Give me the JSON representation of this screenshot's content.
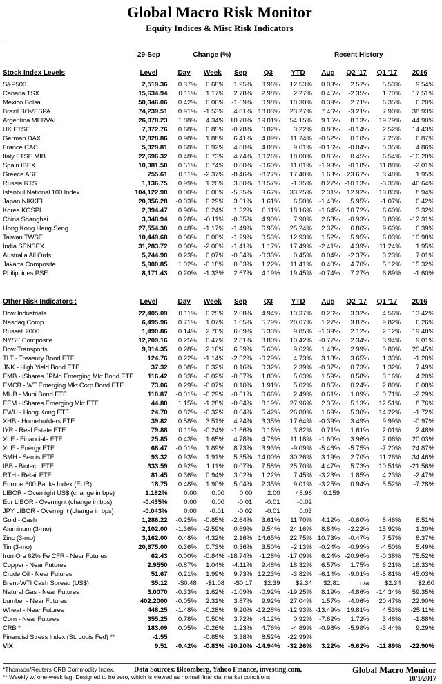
{
  "header": {
    "title": "Global Macro Risk Monitor",
    "subtitle": "Equity Indices & Misc Risk Indicators"
  },
  "columns": {
    "date_label": "29-Sep",
    "change_label": "Change (%)",
    "recent_label": "Recent History",
    "headers": [
      "Level",
      "Day",
      "Week",
      "Sep",
      "Q3",
      "YTD",
      "Aug",
      "Q2 '17",
      "Q1 '17",
      "2016"
    ]
  },
  "stock_table": {
    "section_label": "Stock Index Levels",
    "rows": [
      {
        "name": "S&P500",
        "values": [
          "2,519.36",
          "0.37%",
          "0.68%",
          "1.95%",
          "3.96%",
          "12.53%",
          "0.03%",
          "2.57%",
          "5.53%",
          "9.54%"
        ]
      },
      {
        "name": "Canada TSX",
        "values": [
          "15,634.94",
          "0.11%",
          "1.17%",
          "2.78%",
          "2.98%",
          "2.27%",
          "0.45%",
          "-2.35%",
          "1.70%",
          "17.51%"
        ]
      },
      {
        "name": "Mexico Bolsa",
        "values": [
          "50,346.06",
          "0.42%",
          "0.06%",
          "-1.69%",
          "0.98%",
          "10.30%",
          "0.39%",
          "2.71%",
          "6.35%",
          "6.20%"
        ]
      },
      {
        "name": "Brazil BOVESPA",
        "values": [
          "74,239.51",
          "0.91%",
          "-1.53%",
          "4.81%",
          "18.03%",
          "23.27%",
          "7.46%",
          "-3.21%",
          "7.90%",
          "38.93%"
        ]
      },
      {
        "name": "Argentina MERVAL",
        "values": [
          "26,078.23",
          "1.88%",
          "4.34%",
          "10.70%",
          "19.01%",
          "54.15%",
          "9.15%",
          "8.13%",
          "19.79%",
          "44.90%"
        ]
      },
      {
        "name": "UK FTSE",
        "values": [
          "7,372.76",
          "0.68%",
          "0.85%",
          "-0.78%",
          "0.82%",
          "3.22%",
          "0.80%",
          "-0.14%",
          "2.52%",
          "14.43%"
        ]
      },
      {
        "name": "German DAX",
        "values": [
          "12,828.86",
          "0.98%",
          "1.88%",
          "6.41%",
          "4.09%",
          "11.74%",
          "-0.52%",
          "0.10%",
          "7.25%",
          "6.87%"
        ]
      },
      {
        "name": "France CAC",
        "values": [
          "5,329.81",
          "0.68%",
          "0.92%",
          "4.80%",
          "4.08%",
          "9.61%",
          "-0.16%",
          "-0.04%",
          "5.35%",
          "4.86%"
        ]
      },
      {
        "name": "Italy FTSE MIB",
        "values": [
          "22,696.32",
          "0.48%",
          "0.73%",
          "4.74%",
          "10.26%",
          "18.00%",
          "0.85%",
          "0.45%",
          "6.54%",
          "-10.20%"
        ]
      },
      {
        "name": "Spain IBEX",
        "values": [
          "10,381.50",
          "0.51%",
          "0.74%",
          "0.80%",
          "-0.60%",
          "11.01%",
          "-1.93%",
          "-0.18%",
          "11.88%",
          "-2.01%"
        ]
      },
      {
        "name": "Greece ASE",
        "values": [
          "755.61",
          "0.11%",
          "-2.37%",
          "-8.46%",
          "-8.27%",
          "17.40%",
          "1.63%",
          "23.67%",
          "3.48%",
          "1.95%"
        ]
      },
      {
        "name": "Russia RTS",
        "values": [
          "1,136.75",
          "0.99%",
          "1.20%",
          "3.80%",
          "13.57%",
          "-1.35%",
          "8.27%",
          "-10.13%",
          "-3.35%",
          "46.64%"
        ]
      },
      {
        "name": "Istanbul National 100 Index",
        "values": [
          "104,122.90",
          "0.00%",
          "0.00%",
          "-5.35%",
          "3.67%",
          "33.25%",
          "2.31%",
          "12.92%",
          "13.83%",
          "8.94%"
        ]
      },
      {
        "name": "Japan NIKKEI",
        "values": [
          "20,356.28",
          "-0.03%",
          "0.29%",
          "3.61%",
          "1.61%",
          "6.50%",
          "-1.40%",
          "5.95%",
          "-1.07%",
          "0.42%"
        ]
      },
      {
        "name": "Korea KOSPI",
        "values": [
          "2,394.47",
          "0.90%",
          "0.24%",
          "1.32%",
          "0.11%",
          "18.16%",
          "-1.64%",
          "10.72%",
          "6.60%",
          "3.32%"
        ]
      },
      {
        "name": "China Shanghai",
        "values": [
          "3,348.94",
          "0.28%",
          "-0.11%",
          "-0.35%",
          "4.90%",
          "7.90%",
          "2.68%",
          "-0.93%",
          "3.83%",
          "-12.31%"
        ]
      },
      {
        "name": "Hong Kong Hang Seng",
        "values": [
          "27,554.30",
          "0.48%",
          "-1.17%",
          "-1.49%",
          "6.95%",
          "25.24%",
          "2.37%",
          "6.86%",
          "9.60%",
          "0.39%"
        ]
      },
      {
        "name": "Taiwan  TWSE",
        "values": [
          "10,449.68",
          "0.00%",
          "0.00%",
          "-1.29%",
          "0.53%",
          "12.93%",
          "1.52%",
          "5.95%",
          "6.03%",
          "10.98%"
        ]
      },
      {
        "name": "India SENSEX",
        "values": [
          "31,283.72",
          "0.00%",
          "-2.00%",
          "-1.41%",
          "1.17%",
          "17.49%",
          "-2.41%",
          "4.39%",
          "11.24%",
          "1.95%"
        ]
      },
      {
        "name": "Australia All Ords",
        "values": [
          "5,744.90",
          "0.23%",
          "0.07%",
          "-0.54%",
          "-0.33%",
          "0.45%",
          "0.04%",
          "-2.37%",
          "3.23%",
          "7.01%"
        ]
      },
      {
        "name": "Jakarta Composite",
        "values": [
          "5,900.85",
          "1.02%",
          "-0.18%",
          "0.63%",
          "1.22%",
          "11.41%",
          "0.40%",
          "4.70%",
          "5.12%",
          "15.32%"
        ]
      },
      {
        "name": "Philippines PSE",
        "values": [
          "8,171.43",
          "0.20%",
          "-1.33%",
          "2.67%",
          "4.19%",
          "19.45%",
          "-0.74%",
          "7.27%",
          "6.89%",
          "-1.60%"
        ]
      }
    ]
  },
  "risk_table": {
    "section_label": "Other Risk Indicators :",
    "rows": [
      {
        "name": "Dow Industrials",
        "values": [
          "22,405.09",
          "0.11%",
          "0.25%",
          "2.08%",
          "4.94%",
          "13.37%",
          "0.26%",
          "3.32%",
          "4.56%",
          "13.42%"
        ]
      },
      {
        "name": "Nasdaq Comp",
        "values": [
          "6,495.96",
          "0.71%",
          "1.07%",
          "1.05%",
          "5.79%",
          "20.67%",
          "1.27%",
          "3.87%",
          "9.82%",
          "6.26%"
        ]
      },
      {
        "name": "Russell 2000",
        "values": [
          "1,490.86",
          "0.14%",
          "2.76%",
          "6.09%",
          "5.33%",
          "9.85%",
          "-1.39%",
          "2.12%",
          "2.12%",
          "19.48%"
        ]
      },
      {
        "name": "NYSE Composite",
        "values": [
          "12,209.16",
          "0.25%",
          "0.47%",
          "2.81%",
          "3.80%",
          "10.42%",
          "-0.77%",
          "2.34%",
          "3.94%",
          "9.01%"
        ]
      },
      {
        "name": "Dow Transports",
        "values": [
          "9,914.35",
          "0.28%",
          "2.16%",
          "6.39%",
          "5.60%",
          "9.62%",
          "1.48%",
          "2.99%",
          "0.80%",
          "20.45%"
        ]
      },
      {
        "name": "TLT - Treasury Bond ETF",
        "values": [
          "124.76",
          "0.22%",
          "-1.14%",
          "-2.52%",
          "-0.29%",
          "4.73%",
          "3.18%",
          "3.65%",
          "1.33%",
          "-1.20%"
        ]
      },
      {
        "name": "JNK - High Yield Bond ETF",
        "values": [
          "37.32",
          "0.08%",
          "0.32%",
          "0.16%",
          "0.32%",
          "2.39%",
          "-0.37%",
          "0.73%",
          "1.32%",
          "7.49%"
        ]
      },
      {
        "name": "EMB - iShares JPMo Emerging Mkt Bond ETF",
        "values": [
          "116.42",
          "0.33%",
          "-0.02%",
          "-0.57%",
          "1.80%",
          "5.63%",
          "1.59%",
          "0.58%",
          "3.16%",
          "4.20%"
        ]
      },
      {
        "name": "EMCB - WT Emerging Mkt Corp Bond ETF",
        "values": [
          "73.06",
          "0.29%",
          "-0.07%",
          "0.10%",
          "1.91%",
          "5.02%",
          "0.85%",
          "0.24%",
          "2.80%",
          "6.08%"
        ]
      },
      {
        "name": "MUB - Muni Bond ETF",
        "values": [
          "110.87",
          "-0.01%",
          "-0.29%",
          "-0.61%",
          "0.66%",
          "2.49%",
          "0.61%",
          "1.09%",
          "0.71%",
          "-2.29%"
        ]
      },
      {
        "name": "EEM - iShares Emerging Mkt ETF",
        "values": [
          "44.80",
          "1.15%",
          "-1.28%",
          "-0.04%",
          "8.19%",
          "27.96%",
          "2.35%",
          "5.13%",
          "12.51%",
          "8.76%"
        ]
      },
      {
        "name": "EWH - Hong Kong ETF",
        "values": [
          "24.70",
          "0.82%",
          "-0.32%",
          "0.04%",
          "5.42%",
          "26.80%",
          "1.69%",
          "5.30%",
          "14.22%",
          "-1.72%"
        ]
      },
      {
        "name": "XHB - Homebuilders ETF",
        "values": [
          "39.82",
          "0.58%",
          "3.51%",
          "4.24%",
          "3.35%",
          "17.64%",
          "-0.39%",
          "3.49%",
          "9.99%",
          "-0.97%"
        ]
      },
      {
        "name": "IYR - Real Estate ETF",
        "values": [
          "79.88",
          "0.11%",
          "-0.24%",
          "-1.66%",
          "0.16%",
          "3.82%",
          "0.71%",
          "1.61%",
          "2.01%",
          "2.48%"
        ]
      },
      {
        "name": "XLF - Financials ETF",
        "values": [
          "25.85",
          "0.43%",
          "1.65%",
          "4.78%",
          "4.78%",
          "11.18%",
          "-1.60%",
          "3.96%",
          "2.06%",
          "20.03%"
        ]
      },
      {
        "name": "XLE - Energy ETF",
        "values": [
          "68.47",
          "-0.01%",
          "1.89%",
          "8.73%",
          "3.93%",
          "-9.09%",
          "-5.46%",
          "-5.75%",
          "-7.20%",
          "24.87%"
        ]
      },
      {
        "name": "SMH - Semis ETF",
        "values": [
          "93.32",
          "0.93%",
          "1.91%",
          "5.35%",
          "14.00%",
          "30.26%",
          "3.19%",
          "2.70%",
          "11.26%",
          "34.46%"
        ]
      },
      {
        "name": "IBB - Biotech ETF",
        "values": [
          "333.59",
          "0.92%",
          "1.11%",
          "0.07%",
          "7.58%",
          "25.70%",
          "4.47%",
          "5.73%",
          "10.51%",
          "-21.56%"
        ]
      },
      {
        "name": "RTH - Retail ETF",
        "values": [
          "81.45",
          "0.36%",
          "0.94%",
          "3.02%",
          "1.22%",
          "7.45%",
          "-3.23%",
          "1.85%",
          "4.23%",
          "-2.47%"
        ]
      },
      {
        "name": "Europe 600 Banks Index (EUR)",
        "values": [
          "18.75",
          "0.48%",
          "1.90%",
          "5.04%",
          "2.35%",
          "9.01%",
          "-3.25%",
          "0.94%",
          "5.52%",
          "-7.28%"
        ]
      },
      {
        "name": "LIBOR - Overnight US$  (change in bps)",
        "values": [
          "1.182%",
          "0.00",
          "0.00",
          "0.00",
          "2.00",
          "48.96",
          "0.159",
          "",
          "",
          ""
        ]
      },
      {
        "name": "Eur LIBOR - Overnignt (change in bps)",
        "values": [
          "-0.435%",
          "0.00",
          "0.00",
          "-0.01",
          "-0.01",
          "-0.02",
          "",
          "",
          "",
          ""
        ]
      },
      {
        "name": "JPY LIBOR - Overnight (change in bps)",
        "values": [
          "-0.043%",
          "0.00",
          "-0.01",
          "-0.02",
          "-0.01",
          "0.03",
          "",
          "",
          "",
          ""
        ]
      },
      {
        "name": "Gold - Cash",
        "values": [
          "1,286.22",
          "-0.25%",
          "-0.85%",
          "-2.64%",
          "3.61%",
          "11.70%",
          "4.12%",
          "-0.60%",
          "8.46%",
          "8.51%"
        ]
      },
      {
        "name": "Aluminum (3-mo)",
        "values": [
          "2,102.00",
          "-1.36%",
          "-2.59%",
          "0.69%",
          "9.54%",
          "24.16%",
          "8.84%",
          "-2.22%",
          "15.92%",
          "1.20%"
        ]
      },
      {
        "name": "Zinc (3-mo)",
        "values": [
          "3,162.00",
          "0.48%",
          "4.32%",
          "2.16%",
          "14.65%",
          "22.75%",
          "10.73%",
          "-0.47%",
          "7.57%",
          "8.37%"
        ]
      },
      {
        "name": "Tin (3-mo)",
        "values": [
          "20,675.00",
          "0.36%",
          "0.73%",
          "0.36%",
          "3.50%",
          "-2.13%",
          "-0.24%",
          "-0.99%",
          "-4.50%",
          "5.49%"
        ]
      },
      {
        "name": "Iron Ore 62% Fe CFR - Near Futures",
        "values": [
          "62.43",
          "0.00%",
          "-0.84%",
          "-18.74%",
          "-1.28%",
          "-17.09%",
          "6.24%",
          "-20.96%",
          "-0.38%",
          "75.52%"
        ]
      },
      {
        "name": "Copper - Near Futures",
        "values": [
          "2.9550",
          "-0.87%",
          "1.04%",
          "-4.11%",
          "9.48%",
          "18.32%",
          "6.57%",
          "1.75%",
          "6.21%",
          "16.33%"
        ]
      },
      {
        "name": "Crude Oil - Near Futures",
        "values": [
          "51.67",
          "0.21%",
          "1.99%",
          "9.73%",
          "12.23%",
          "-3.82%",
          "-6.14%",
          "-9.01%",
          "-5.81%",
          "45.03%"
        ]
      },
      {
        "name": "Brent-WTI Cash Spread (US$)",
        "values": [
          "$5.12",
          "-$0.48",
          "-$1.08",
          "-$0.17",
          "$2.39",
          "$2.34",
          "$2.81",
          "n/a",
          "$2.34",
          "$2.60"
        ]
      },
      {
        "name": "Natural Gas - Near Futures",
        "values": [
          "3.0070",
          "-0.33%",
          "1.62%",
          "-1.09%",
          "-0.92%",
          "-19.25%",
          "8.19%",
          "-4.86%",
          "-14.34%",
          "59.35%"
        ]
      },
      {
        "name": "Lumber - Near Futures",
        "values": [
          "402.2000",
          "-0.05%",
          "2.31%",
          "3.87%",
          "9.92%",
          "27.04%",
          "1.57%",
          "-4.06%",
          "20.47%",
          "22.90%"
        ]
      },
      {
        "name": "Wheat - Near Futures",
        "values": [
          "448.25",
          "-1.48%",
          "-0.28%",
          "9.20%",
          "-12.28%",
          "-12.93%",
          "-13.49%",
          "19.81%",
          "4.53%",
          "-25.11%"
        ]
      },
      {
        "name": "Corn - Near Futures",
        "values": [
          "355.25",
          "0.78%",
          "0.50%",
          "3.72%",
          "-4.12%",
          "0.92%",
          "-7.62%",
          "1.72%",
          "3.48%",
          "-1.88%"
        ]
      },
      {
        "name": "CRB *",
        "values": [
          "183.09",
          "0.05%",
          "-0.26%",
          "1.23%",
          "4.76%",
          "-4.89%",
          "-0.98%",
          "-5.98%",
          "-3.44%",
          "9.29%"
        ]
      },
      {
        "name": "Financial Stress Index (St. Louis Fed) **",
        "values": [
          "-1.55",
          "",
          "-0.85%",
          "3.38%",
          "8.52%",
          "-22.99%",
          "",
          "",
          "",
          ""
        ]
      },
      {
        "name": "VIX",
        "bold": true,
        "values": [
          "9.51",
          "-0.42%",
          "-0.83%",
          "-10.20%",
          "-14.94%",
          "-32.26%",
          "3.22%",
          "-9.62%",
          "-11.89%",
          "-22.90%"
        ]
      }
    ]
  },
  "footer": {
    "note1": "*Thomson/Reuters CRB Commodity Index.",
    "data_sources": "Data Sources:  Bloomberg,  Yahoo Finance, investing.com,",
    "note2": "** Weekly w/ one-week lag. Designed to be zero, which is viewed as normal financial market conditions.",
    "brand": "Global Macro Monitor",
    "date": "10/1/2017"
  }
}
